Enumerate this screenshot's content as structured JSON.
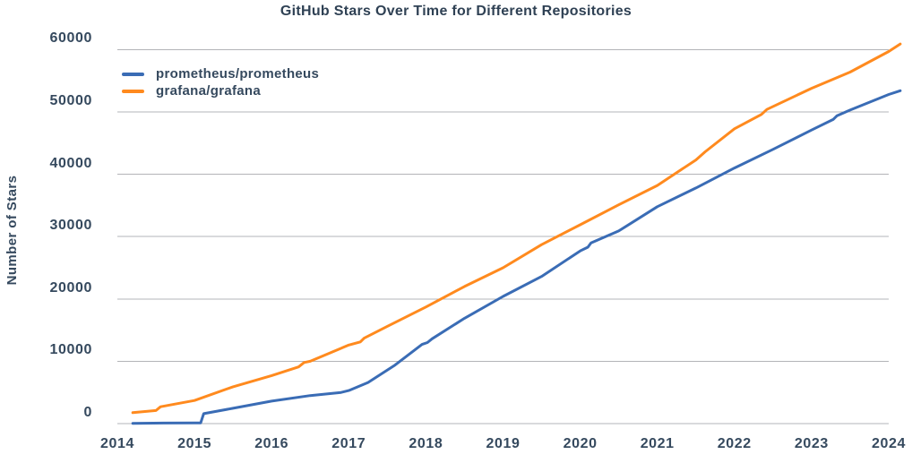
{
  "colors": {
    "text": "#35495e",
    "title": "#2f4154",
    "gridline": "#b3b4b8",
    "background": "#ffffff"
  },
  "chart_data": {
    "type": "line",
    "title": "GitHub Stars Over Time for Different Repositories",
    "xlabel": "",
    "ylabel": "Number of Stars",
    "x_ticks": [
      2014,
      2015,
      2016,
      2017,
      2018,
      2019,
      2020,
      2021,
      2022,
      2023,
      2024
    ],
    "y_ticks": [
      0,
      10000,
      20000,
      30000,
      40000,
      50000,
      60000
    ],
    "x_range": [
      2014.2,
      2024.15
    ],
    "ylim": [
      0,
      62000
    ],
    "grid": true,
    "legend_position": "upper-left",
    "series": [
      {
        "name": "prometheus/prometheus",
        "color": "#3a6cb5",
        "points": [
          [
            2014.2,
            50
          ],
          [
            2014.6,
            80
          ],
          [
            2015.0,
            100
          ],
          [
            2015.08,
            120
          ],
          [
            2015.12,
            1600
          ],
          [
            2015.5,
            2450
          ],
          [
            2016.0,
            3600
          ],
          [
            2016.5,
            4500
          ],
          [
            2016.9,
            5000
          ],
          [
            2017.0,
            5300
          ],
          [
            2017.25,
            6600
          ],
          [
            2017.6,
            9400
          ],
          [
            2017.95,
            12700
          ],
          [
            2018.02,
            13000
          ],
          [
            2018.08,
            13600
          ],
          [
            2018.5,
            16900
          ],
          [
            2019.0,
            20400
          ],
          [
            2019.5,
            23600
          ],
          [
            2020.0,
            27700
          ],
          [
            2020.1,
            28300
          ],
          [
            2020.14,
            29000
          ],
          [
            2020.5,
            30900
          ],
          [
            2021.0,
            34800
          ],
          [
            2021.5,
            37800
          ],
          [
            2022.0,
            41000
          ],
          [
            2022.5,
            44000
          ],
          [
            2023.0,
            47100
          ],
          [
            2023.28,
            48800
          ],
          [
            2023.33,
            49400
          ],
          [
            2023.5,
            50300
          ],
          [
            2024.0,
            52800
          ],
          [
            2024.15,
            53400
          ]
        ]
      },
      {
        "name": "grafana/grafana",
        "color": "#ff8a1e",
        "points": [
          [
            2014.2,
            1750
          ],
          [
            2014.5,
            2100
          ],
          [
            2014.56,
            2700
          ],
          [
            2015.0,
            3700
          ],
          [
            2015.5,
            5900
          ],
          [
            2016.0,
            7700
          ],
          [
            2016.35,
            9100
          ],
          [
            2016.42,
            9800
          ],
          [
            2016.5,
            10000
          ],
          [
            2017.0,
            12600
          ],
          [
            2017.15,
            13100
          ],
          [
            2017.2,
            13700
          ],
          [
            2017.5,
            15600
          ],
          [
            2018.0,
            18700
          ],
          [
            2018.5,
            22000
          ],
          [
            2019.0,
            25000
          ],
          [
            2019.5,
            28700
          ],
          [
            2020.0,
            31900
          ],
          [
            2020.5,
            35100
          ],
          [
            2021.0,
            38200
          ],
          [
            2021.5,
            42300
          ],
          [
            2021.62,
            43600
          ],
          [
            2022.0,
            47300
          ],
          [
            2022.35,
            49600
          ],
          [
            2022.42,
            50400
          ],
          [
            2023.0,
            53800
          ],
          [
            2023.5,
            56400
          ],
          [
            2024.0,
            59700
          ],
          [
            2024.15,
            60900
          ]
        ]
      }
    ]
  }
}
